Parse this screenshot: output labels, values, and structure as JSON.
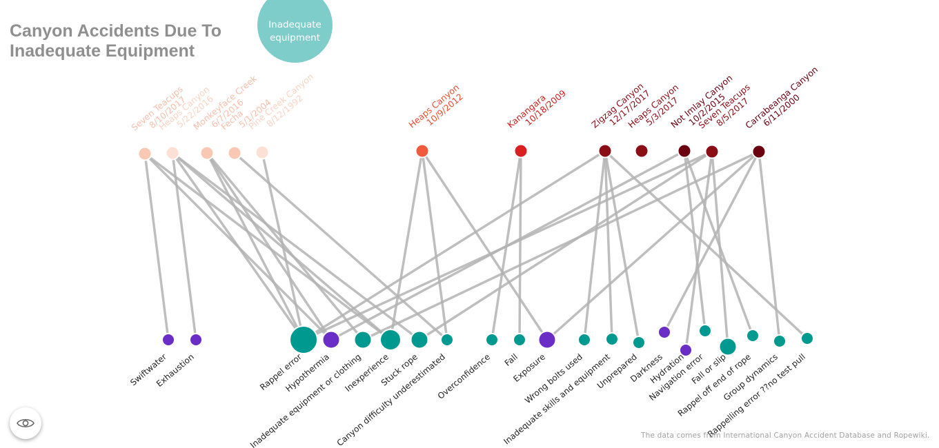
{
  "title": "Canyon Accidents Due To Inadequate Equipment",
  "category_bubble": {
    "label": "Inadequate equipment",
    "color": "#7ecdca"
  },
  "source_note": "The data comes from International Canyon Accident Database and Ropewiki.",
  "toggle_icon": "eye-icon",
  "colors": {
    "link": "#b3b3b3",
    "cause_teal": "#009990",
    "cause_purple": "#6a2ec7",
    "accident_scale": [
      "#f9c8b4",
      "#fde0d5",
      "#f25a3e",
      "#d91f1f",
      "#8b0d16",
      "#6a0010"
    ]
  },
  "accidents": [
    {
      "id": "a1",
      "name": "Seven Teacups",
      "date": "8/10/2017",
      "color": "#f9c8b4",
      "text_color": "#f7bfab"
    },
    {
      "id": "a2",
      "name": "Heaps Canyon",
      "date": "5/22/2016",
      "color": "#fde0d5",
      "text_color": "#f9d3c4"
    },
    {
      "id": "a3",
      "name": "Monkeyface Creek",
      "date": "6/7/2016",
      "color": "#f9c8b4",
      "text_color": "#f7bfab"
    },
    {
      "id": "a4",
      "name": "Fecha",
      "date": "5/1/2004",
      "color": "#f9c8b4",
      "text_color": "#f7bfab"
    },
    {
      "id": "a5",
      "name": "Pine Creek Canyon",
      "date": "8/12/1992",
      "color": "#fde0d5",
      "text_color": "#f9d3c4"
    },
    {
      "id": "a6",
      "name": "Heaps Canyon",
      "date": "10/9/2012",
      "color": "#f25a3e",
      "text_color": "#ef4f31"
    },
    {
      "id": "a7",
      "name": "Kanangara",
      "date": "10/18/2009",
      "color": "#d91f1f",
      "text_color": "#cf1b1b"
    },
    {
      "id": "a8",
      "name": "Zigzag Canyon",
      "date": "12/17/2017",
      "color": "#8b0d16",
      "text_color": "#8b0d16"
    },
    {
      "id": "a9",
      "name": "Heaps Canyon",
      "date": "5/3/2017",
      "color": "#8b0d16",
      "text_color": "#8b0d16"
    },
    {
      "id": "a10",
      "name": "Not Imlay Canyon",
      "date": "10/2/2015",
      "color": "#6a0010",
      "text_color": "#6a0010"
    },
    {
      "id": "a11",
      "name": "Seven Teacups",
      "date": "8/5/2017",
      "color": "#8b0d16",
      "text_color": "#8b0d16"
    },
    {
      "id": "a12",
      "name": "Carrabeanga Canyon",
      "date": "6/11/2000",
      "color": "#6a0010",
      "text_color": "#6a0010"
    }
  ],
  "causes": [
    {
      "id": "c1",
      "name": "Swiftwater",
      "type": "purple",
      "size": "small"
    },
    {
      "id": "c2",
      "name": "Exhaustion",
      "type": "purple",
      "size": "small"
    },
    {
      "id": "c3",
      "name": "Rappel error",
      "type": "teal",
      "size": "xlarge"
    },
    {
      "id": "c4",
      "name": "Hypothermia",
      "type": "purple",
      "size": "medium"
    },
    {
      "id": "c5",
      "name": "Inadequate equipment or clothing",
      "type": "teal",
      "size": "medium"
    },
    {
      "id": "c6",
      "name": "Inexperience",
      "type": "teal",
      "size": "large"
    },
    {
      "id": "c7",
      "name": "Stuck rope",
      "type": "teal",
      "size": "medium"
    },
    {
      "id": "c8",
      "name": "Canyon difficulty underestimated",
      "type": "teal",
      "size": "small"
    },
    {
      "id": "c9",
      "name": "Overconfidence",
      "type": "teal",
      "size": "small"
    },
    {
      "id": "c10",
      "name": "Fall",
      "type": "teal",
      "size": "small"
    },
    {
      "id": "c11",
      "name": "Exposure",
      "type": "purple",
      "size": "medium"
    },
    {
      "id": "c12",
      "name": "Wrong bolts used",
      "type": "teal",
      "size": "small"
    },
    {
      "id": "c13",
      "name": "Inadequate skills and equipment",
      "type": "teal",
      "size": "small"
    },
    {
      "id": "c14",
      "name": "Unprepared",
      "type": "teal",
      "size": "small"
    },
    {
      "id": "c15",
      "name": "Darkness",
      "type": "purple",
      "size": "small"
    },
    {
      "id": "c16",
      "name": "Hydration",
      "type": "purple",
      "size": "small"
    },
    {
      "id": "c17",
      "name": "Navigation error",
      "type": "teal",
      "size": "small"
    },
    {
      "id": "c18",
      "name": "Fall or slip",
      "type": "teal",
      "size": "medium"
    },
    {
      "id": "c19",
      "name": "Rappel off end of rope",
      "type": "teal",
      "size": "small"
    },
    {
      "id": "c20",
      "name": "Group dynamics",
      "type": "teal",
      "size": "small"
    },
    {
      "id": "c21",
      "name": "Rappelling error ??no test pull",
      "type": "teal",
      "size": "small"
    }
  ],
  "links": [
    [
      "a1",
      "c1"
    ],
    [
      "a1",
      "c4"
    ],
    [
      "a1",
      "c6"
    ],
    [
      "a2",
      "c2"
    ],
    [
      "a2",
      "c3"
    ],
    [
      "a2",
      "c6"
    ],
    [
      "a2",
      "c7"
    ],
    [
      "a3",
      "c3"
    ],
    [
      "a3",
      "c4"
    ],
    [
      "a3",
      "c5"
    ],
    [
      "a4",
      "c8"
    ],
    [
      "a5",
      "c3"
    ],
    [
      "a6",
      "c6"
    ],
    [
      "a6",
      "c8"
    ],
    [
      "a6",
      "c11"
    ],
    [
      "a7",
      "c9"
    ],
    [
      "a7",
      "c10"
    ],
    [
      "a8",
      "c3"
    ],
    [
      "a8",
      "c12"
    ],
    [
      "a8",
      "c13"
    ],
    [
      "a8",
      "c14"
    ],
    [
      "a8",
      "c21"
    ],
    [
      "a10",
      "c4"
    ],
    [
      "a10",
      "c17"
    ],
    [
      "a10",
      "c19"
    ],
    [
      "a11",
      "c3"
    ],
    [
      "a11",
      "c7"
    ],
    [
      "a11",
      "c16"
    ],
    [
      "a11",
      "c18"
    ],
    [
      "a12",
      "c5"
    ],
    [
      "a12",
      "c11"
    ],
    [
      "a12",
      "c15"
    ],
    [
      "a12",
      "c20"
    ]
  ]
}
